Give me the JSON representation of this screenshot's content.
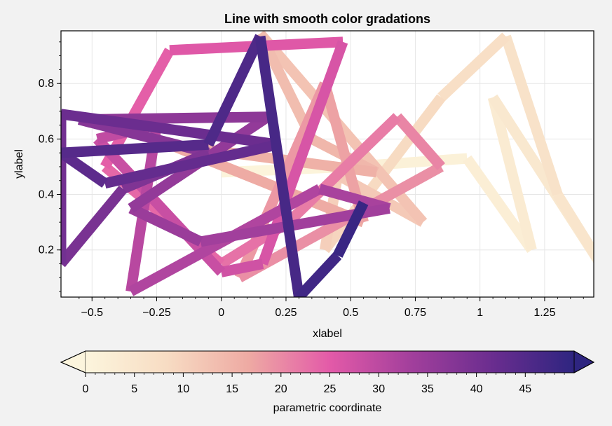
{
  "chart_data": {
    "type": "line",
    "title": "Line with smooth color gradations",
    "xlabel": "xlabel",
    "ylabel": "ylabel",
    "xlim": [
      -0.62,
      1.44
    ],
    "ylim": [
      0.03,
      0.99
    ],
    "grid": true,
    "xticks": [
      -0.5,
      -0.25,
      0,
      0.25,
      0.5,
      0.75,
      1,
      1.25
    ],
    "xtick_labels": [
      "−0.5",
      "−0.25",
      "0",
      "0.25",
      "0.5",
      "0.75",
      "1",
      "1.25"
    ],
    "yticks": [
      0.2,
      0.4,
      0.6,
      0.8
    ],
    "ytick_labels": [
      "0.2",
      "0.4",
      "0.6",
      "0.8"
    ],
    "colormap": "magma_r",
    "colorbar": {
      "label": "parametric coordinate",
      "range": [
        0,
        50
      ],
      "ticks": [
        0,
        5,
        10,
        15,
        20,
        25,
        30,
        35,
        40,
        45
      ],
      "tick_labels": [
        "0",
        "5",
        "10",
        "15",
        "20",
        "25",
        "30",
        "35",
        "40",
        "45"
      ],
      "extend": "both"
    },
    "colors": [
      "#fcf5dd",
      "#f7dcc3",
      "#eeaaa3",
      "#e35aa8",
      "#a23f9c",
      "#6a2d8f",
      "#2e2580"
    ],
    "series": [
      {
        "parametric": [
          0,
          1,
          2,
          3,
          4,
          5,
          6,
          7,
          8,
          9,
          10,
          11,
          12,
          13,
          14,
          15,
          16,
          17,
          18,
          19,
          20,
          21,
          22,
          23,
          24,
          25,
          26,
          27,
          28,
          29,
          30,
          31,
          32,
          33,
          34,
          35,
          36,
          37,
          38,
          39,
          40,
          41,
          42,
          43,
          44,
          45,
          46,
          47,
          48,
          49
        ],
        "x": [
          0.0,
          0.5,
          0.95,
          1.2,
          1.05,
          1.5,
          1.3,
          1.1,
          0.85,
          0.58,
          0.4,
          0.45,
          0.78,
          0.15,
          0.35,
          0.6,
          -0.2,
          0.55,
          0.4,
          0.07,
          0.85,
          0.68,
          0.26,
          0.0,
          -0.45,
          -0.2,
          0.47,
          0.16,
          0.0,
          -0.48,
          -0.25,
          -0.35,
          0.38,
          0.65,
          -0.08,
          -0.35,
          0.18,
          -0.55,
          -0.05,
          -0.38,
          -0.62,
          -0.62,
          0.22,
          -0.45,
          -0.62,
          -0.05,
          0.15,
          0.3,
          0.45,
          0.55
        ],
        "y": [
          0.48,
          0.5,
          0.53,
          0.2,
          0.75,
          0.1,
          0.4,
          0.97,
          0.75,
          0.42,
          0.2,
          0.47,
          0.3,
          0.98,
          0.6,
          0.48,
          0.58,
          0.3,
          0.8,
          0.1,
          0.5,
          0.68,
          0.3,
          0.15,
          0.5,
          0.92,
          0.95,
          0.15,
          0.12,
          0.6,
          0.65,
          0.05,
          0.42,
          0.35,
          0.23,
          0.35,
          0.68,
          0.67,
          0.55,
          0.42,
          0.15,
          0.69,
          0.58,
          0.44,
          0.55,
          0.58,
          0.97,
          0.03,
          0.18,
          0.37
        ]
      }
    ]
  }
}
